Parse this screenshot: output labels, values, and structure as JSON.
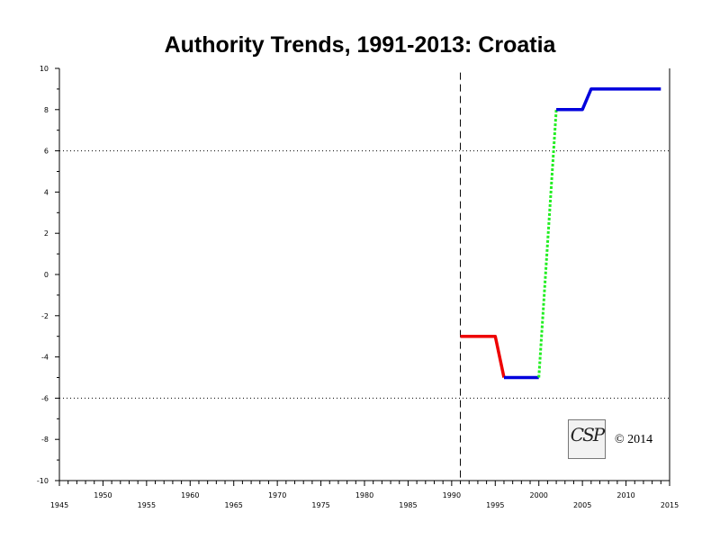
{
  "chart_data": {
    "type": "line",
    "title": "Authority Trends, 1991-2013: Croatia",
    "xlim": [
      1945,
      2015
    ],
    "ylim": [
      -10,
      10
    ],
    "x_ticks": [
      1945,
      1950,
      1955,
      1960,
      1965,
      1970,
      1975,
      1980,
      1985,
      1990,
      1995,
      2000,
      2005,
      2010,
      2015
    ],
    "y_ticks": [
      10,
      8,
      6,
      4,
      2,
      0,
      -2,
      -4,
      -6,
      -8,
      -10
    ],
    "reference_lines": {
      "horizontal": [
        6,
        -6
      ],
      "vertical": [
        1991
      ]
    },
    "series": [
      {
        "style": "solid",
        "color": "#ee0000",
        "points": [
          [
            1991,
            -3
          ],
          [
            1995,
            -3
          ],
          [
            1996,
            -5
          ]
        ]
      },
      {
        "style": "solid",
        "color": "#0000dd",
        "points": [
          [
            1996,
            -5
          ],
          [
            2000,
            -5
          ]
        ]
      },
      {
        "style": "dotted",
        "color": "#22ee22",
        "points": [
          [
            2000,
            -5
          ],
          [
            2002,
            8
          ]
        ]
      },
      {
        "style": "solid",
        "color": "#0000dd",
        "points": [
          [
            2002,
            8
          ],
          [
            2005,
            8
          ],
          [
            2006,
            9
          ],
          [
            2014,
            9
          ]
        ]
      }
    ],
    "grid": false
  },
  "logo": {
    "letters": "CSP",
    "icon": "csp-logo-icon"
  },
  "copyright": "© 2014"
}
